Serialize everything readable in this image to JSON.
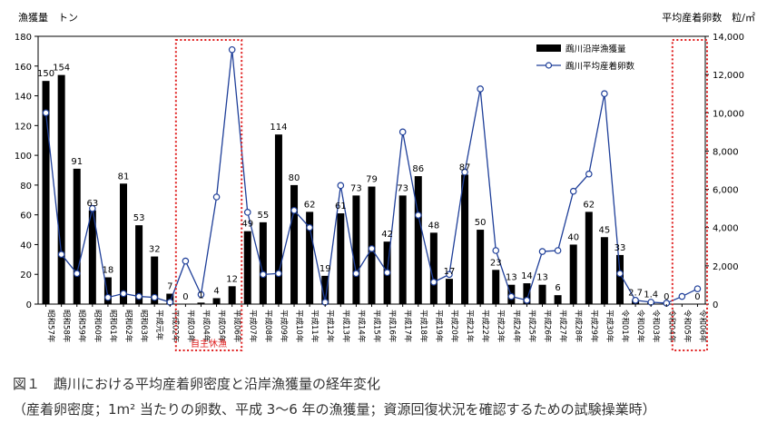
{
  "caption": {
    "line1": "図１　鵡川における平均産着卵密度と沿岸漁獲量の経年変化",
    "line2": "（産着卵密度；1m² 当たりの卵数、平成 3～6 年の漁獲量；資源回復状況を確認するための試験操業時）"
  },
  "chart_data": {
    "type": "bar+line",
    "left_axis": {
      "label": "漁獲量　トン",
      "ylim": [
        0,
        180
      ],
      "ticks": [
        0,
        20,
        40,
        60,
        80,
        100,
        120,
        140,
        160,
        180
      ]
    },
    "right_axis": {
      "label": "平均産着卵数　粒/㎡",
      "ylim": [
        0,
        14000
      ],
      "ticks": [
        0,
        2000,
        4000,
        6000,
        8000,
        10000,
        12000,
        14000
      ],
      "tick_labels": [
        "0",
        "2,000",
        "4,000",
        "6,000",
        "8,000",
        "10,000",
        "12,000",
        "14,000"
      ]
    },
    "categories": [
      "昭和57年",
      "昭和58年",
      "昭和59年",
      "昭和60年",
      "昭和61年",
      "昭和62年",
      "昭和63年",
      "平成元年",
      "平成02年",
      "平成03年",
      "平成04年",
      "平成05年",
      "平成06年",
      "平成07年",
      "平成08年",
      "平成09年",
      "平成10年",
      "平成11年",
      "平成12年",
      "平成13年",
      "平成14年",
      "平成15年",
      "平成16年",
      "平成17年",
      "平成18年",
      "平成19年",
      "平成20年",
      "平成21年",
      "平成22年",
      "平成23年",
      "平成24年",
      "平成25年",
      "平成26年",
      "平成27年",
      "平成28年",
      "平成29年",
      "平成30年",
      "令和01年",
      "令和02年",
      "令和03年",
      "令和04年",
      "令和05年",
      "令和06年"
    ],
    "series": [
      {
        "name": "鵡川沿岸漁獲量",
        "axis": "left",
        "kind": "bar",
        "color": "#000000",
        "values": [
          150,
          154,
          91,
          63,
          18,
          81,
          53,
          32,
          7,
          0,
          1,
          4,
          12,
          49,
          55,
          114,
          80,
          62,
          19,
          61,
          73,
          79,
          42,
          73,
          86,
          48,
          17,
          87,
          50,
          23,
          13,
          14,
          13,
          6,
          40,
          62,
          45,
          33,
          2.7,
          1.4,
          0,
          null,
          0
        ],
        "labels": [
          "150",
          "154",
          "91",
          "63",
          "18",
          "81",
          "53",
          "32",
          "7",
          "0",
          "1",
          "4",
          "12",
          "49",
          "55",
          "114",
          "80",
          "62",
          "19",
          "61",
          "73",
          "79",
          "42",
          "73",
          "86",
          "48",
          "17",
          "87",
          "50",
          "23",
          "13",
          "14",
          "13",
          "6",
          "40",
          "62",
          "45",
          "33",
          "2.7",
          "1.4",
          "0",
          "",
          "0"
        ]
      },
      {
        "name": "鵡川平均産着卵数",
        "axis": "right",
        "kind": "line",
        "color": "#1f3f99",
        "values": [
          10000,
          2600,
          1600,
          5000,
          350,
          550,
          400,
          350,
          100,
          2250,
          500,
          5600,
          13300,
          4800,
          1550,
          1600,
          4900,
          4000,
          100,
          6200,
          1600,
          2900,
          1650,
          9000,
          4650,
          1150,
          1550,
          6900,
          11250,
          2800,
          400,
          200,
          2750,
          2800,
          5900,
          6800,
          11000,
          1600,
          200,
          100,
          50,
          400,
          800
        ]
      }
    ],
    "annotations": [
      {
        "text": "自主休漁",
        "box": "平成03年–平成06年",
        "color": "#e02020"
      },
      {
        "text": "",
        "box": "令和05年–令和06年",
        "color": "#e02020"
      }
    ]
  }
}
